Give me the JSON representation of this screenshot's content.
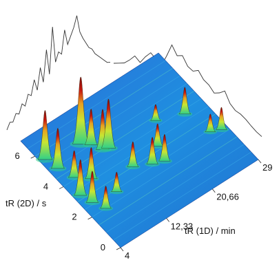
{
  "chart_data": {
    "type": "surface-3d",
    "title": "",
    "xlabel": "tR (1D) / min",
    "ylabel": "tR (2D) / s",
    "x_ticks": [
      "4",
      "12,33",
      "20,66",
      "29"
    ],
    "y_ticks": [
      "0",
      "2",
      "4",
      "6"
    ],
    "x_range": [
      4,
      29
    ],
    "y_range": [
      0,
      7
    ],
    "grid": false,
    "legend": "none",
    "colormap": [
      "#1a3fd6",
      "#1ea0e0",
      "#2fd08a",
      "#c8e632",
      "#e8a020",
      "#c81a10",
      "#7a0a06"
    ],
    "peaks": [
      {
        "x": 4.8,
        "y": 5.6,
        "height": 0.55
      },
      {
        "x": 5.3,
        "y": 4.9,
        "height": 0.45
      },
      {
        "x": 5.0,
        "y": 3.2,
        "height": 0.4
      },
      {
        "x": 5.6,
        "y": 2.6,
        "height": 0.35
      },
      {
        "x": 6.2,
        "y": 4.1,
        "height": 0.3
      },
      {
        "x": 6.5,
        "y": 2.0,
        "height": 0.25
      },
      {
        "x": 8.0,
        "y": 3.6,
        "height": 0.35
      },
      {
        "x": 9.5,
        "y": 2.4,
        "height": 0.22
      },
      {
        "x": 10.5,
        "y": 5.3,
        "height": 0.75
      },
      {
        "x": 11.6,
        "y": 5.0,
        "height": 0.4
      },
      {
        "x": 12.4,
        "y": 4.5,
        "height": 0.45
      },
      {
        "x": 13.2,
        "y": 4.4,
        "height": 0.55
      },
      {
        "x": 14.0,
        "y": 3.0,
        "height": 0.28
      },
      {
        "x": 16.5,
        "y": 2.6,
        "height": 0.3
      },
      {
        "x": 18.2,
        "y": 2.4,
        "height": 0.3
      },
      {
        "x": 19.0,
        "y": 3.2,
        "height": 0.25
      },
      {
        "x": 21.5,
        "y": 4.3,
        "height": 0.18
      },
      {
        "x": 25.5,
        "y": 3.8,
        "height": 0.3
      },
      {
        "x": 26.5,
        "y": 2.4,
        "height": 0.2
      },
      {
        "x": 28.0,
        "y": 2.2,
        "height": 0.25
      }
    ],
    "projection_2d": [
      0.05,
      0.12,
      0.1,
      0.18,
      0.15,
      0.25,
      0.2,
      0.32,
      0.28,
      0.45,
      0.3,
      0.55,
      0.35,
      0.72,
      0.4,
      0.95,
      0.5,
      0.6,
      0.55,
      0.82,
      0.62,
      0.7,
      0.78,
      0.9,
      0.68,
      0.58,
      0.5,
      0.42,
      0.38,
      0.3,
      0.25,
      0.2,
      0.15,
      0.1,
      0.08
    ],
    "projection_1d": [
      0.1,
      0.15,
      0.2,
      0.3,
      0.42,
      0.35,
      0.5,
      0.62,
      0.55,
      0.48,
      0.7,
      0.95,
      0.8,
      0.85,
      0.7,
      0.66,
      0.72,
      0.6,
      0.55,
      0.45,
      0.5,
      0.58,
      0.4,
      0.32,
      0.3,
      0.25,
      0.18,
      0.12,
      0.08
    ]
  }
}
